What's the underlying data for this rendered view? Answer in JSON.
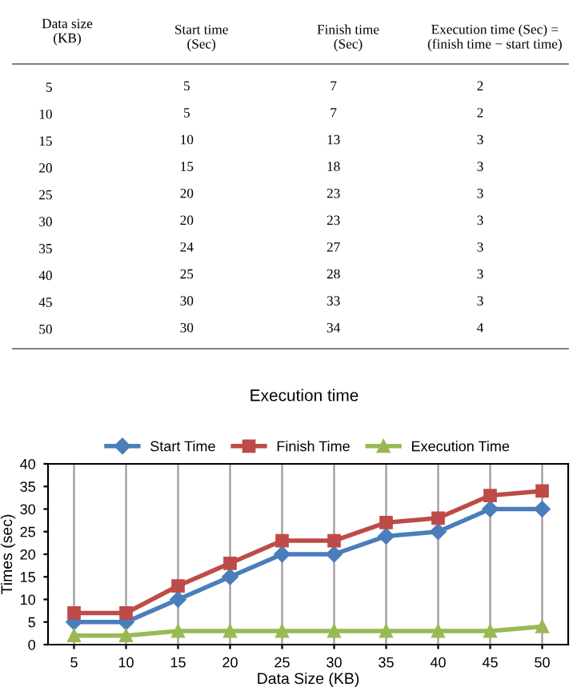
{
  "chart_data": [
    {
      "type": "heatmap",
      "ylabel": "Data size\n(KB)",
      "categories": [
        "Start time\n(Sec)",
        "Finish time\n(Sec)",
        "Execution time (Sec) =\n(finish time − start time)"
      ],
      "y_categories": [
        "5",
        "10",
        "15",
        "20",
        "25",
        "30",
        "35",
        "40",
        "45",
        "50"
      ],
      "cells": [
        [
          5,
          7,
          2
        ],
        [
          5,
          7,
          2
        ],
        [
          10,
          13,
          3
        ],
        [
          15,
          18,
          3
        ],
        [
          20,
          23,
          3
        ],
        [
          20,
          23,
          3
        ],
        [
          24,
          27,
          3
        ],
        [
          25,
          28,
          3
        ],
        [
          30,
          33,
          3
        ],
        [
          30,
          34,
          4
        ]
      ],
      "data_labels": true
    },
    {
      "type": "line",
      "title": "Execution time",
      "xlabel": "Data Size (KB)",
      "ylabel": "Times (sec)",
      "categories": [
        "5",
        "10",
        "15",
        "20",
        "25",
        "30",
        "35",
        "40",
        "45",
        "50"
      ],
      "series": [
        {
          "name": "Start Time",
          "color": "#4a7ebb",
          "marker": "diamond",
          "values": [
            5,
            5,
            10,
            15,
            20,
            20,
            24,
            25,
            30,
            30
          ]
        },
        {
          "name": "Finish Time",
          "color": "#be4b48",
          "marker": "square",
          "values": [
            7,
            7,
            13,
            18,
            23,
            23,
            27,
            28,
            33,
            34
          ]
        },
        {
          "name": "Execution Time",
          "color": "#98b954",
          "marker": "triangle",
          "values": [
            2,
            2,
            3,
            3,
            3,
            3,
            3,
            3,
            3,
            4
          ]
        }
      ],
      "ylim": [
        0,
        40
      ],
      "yticks": [
        0,
        5,
        10,
        15,
        20,
        25,
        30,
        35,
        40
      ],
      "grid": "x",
      "legend": "top",
      "line_style": "solid"
    }
  ]
}
